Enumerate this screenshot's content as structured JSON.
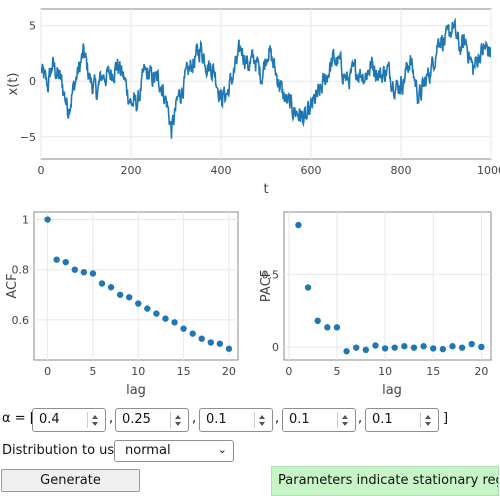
{
  "chart_data": [
    {
      "type": "line",
      "xlabel": "t",
      "ylabel": "x(t)",
      "xlim": [
        0,
        1000
      ],
      "ylim": [
        -7,
        6.5
      ],
      "xticks": [
        "0",
        "200",
        "400",
        "600",
        "800",
        "1000"
      ],
      "yticks": [
        "5",
        "0",
        "−5"
      ],
      "color": "#1f77b4",
      "grid": true,
      "anchors": [
        [
          0,
          1
        ],
        [
          15,
          -0.5
        ],
        [
          25,
          1.5
        ],
        [
          45,
          0
        ],
        [
          60,
          -2.5
        ],
        [
          80,
          0.5
        ],
        [
          95,
          2.5
        ],
        [
          110,
          0
        ],
        [
          125,
          -1
        ],
        [
          135,
          0.5
        ],
        [
          150,
          0.5
        ],
        [
          170,
          1.5
        ],
        [
          185,
          0.2
        ],
        [
          200,
          -2
        ],
        [
          215,
          -2
        ],
        [
          230,
          0.8
        ],
        [
          250,
          0.2
        ],
        [
          265,
          0
        ],
        [
          280,
          -2
        ],
        [
          290,
          -4.5
        ],
        [
          305,
          -1.5
        ],
        [
          320,
          0
        ],
        [
          335,
          1.5
        ],
        [
          355,
          3
        ],
        [
          370,
          1.5
        ],
        [
          385,
          1
        ],
        [
          400,
          -1.5
        ],
        [
          415,
          -1
        ],
        [
          430,
          1
        ],
        [
          445,
          3
        ],
        [
          460,
          1.5
        ],
        [
          475,
          2
        ],
        [
          490,
          0.5
        ],
        [
          505,
          3
        ],
        [
          520,
          1
        ],
        [
          540,
          -1.5
        ],
        [
          560,
          -2.5
        ],
        [
          575,
          -3
        ],
        [
          590,
          -3.5
        ],
        [
          605,
          -2
        ],
        [
          620,
          -1
        ],
        [
          635,
          0.5
        ],
        [
          650,
          2
        ],
        [
          665,
          1.5
        ],
        [
          680,
          0
        ],
        [
          700,
          1
        ],
        [
          720,
          0.5
        ],
        [
          735,
          1.5
        ],
        [
          755,
          0.5
        ],
        [
          770,
          1
        ],
        [
          790,
          -0.5
        ],
        [
          805,
          0
        ],
        [
          820,
          2
        ],
        [
          840,
          -1.5
        ],
        [
          855,
          0
        ],
        [
          870,
          1.5
        ],
        [
          885,
          4
        ],
        [
          900,
          3.5
        ],
        [
          915,
          5
        ],
        [
          930,
          3
        ],
        [
          945,
          3.5
        ],
        [
          960,
          1
        ],
        [
          975,
          2.5
        ],
        [
          990,
          3
        ],
        [
          1000,
          2.5
        ]
      ]
    },
    {
      "type": "scatter",
      "xlabel": "lag",
      "ylabel": "ACF",
      "xlim": [
        -1.5,
        21
      ],
      "ylim": [
        0.44,
        1.03
      ],
      "xticks": [
        "0",
        "5",
        "10",
        "15",
        "20"
      ],
      "yticks": [
        "1",
        "0.8",
        "0.6"
      ],
      "color": "#1f77b4",
      "grid": true,
      "x": [
        0,
        1,
        2,
        3,
        4,
        5,
        6,
        7,
        8,
        9,
        10,
        11,
        12,
        13,
        14,
        15,
        16,
        17,
        18,
        19,
        20
      ],
      "y": [
        1.0,
        0.84,
        0.83,
        0.8,
        0.79,
        0.785,
        0.745,
        0.73,
        0.7,
        0.69,
        0.665,
        0.645,
        0.625,
        0.605,
        0.59,
        0.565,
        0.545,
        0.525,
        0.51,
        0.505,
        0.485
      ]
    },
    {
      "type": "scatter",
      "xlabel": "lag",
      "ylabel": "PACF",
      "xlim": [
        -0.5,
        21
      ],
      "ylim": [
        -0.09,
        0.93
      ],
      "xticks": [
        "0",
        "5",
        "10",
        "15",
        "20"
      ],
      "yticks": [
        "0.5",
        "0"
      ],
      "color": "#1f77b4",
      "grid": true,
      "x": [
        1,
        2,
        3,
        4,
        5,
        6,
        7,
        8,
        9,
        10,
        11,
        12,
        13,
        14,
        15,
        16,
        17,
        18,
        19,
        20
      ],
      "y": [
        0.84,
        0.41,
        0.18,
        0.135,
        0.135,
        -0.03,
        -0.005,
        -0.02,
        0.01,
        -0.01,
        -0.005,
        0.005,
        -0.005,
        0.005,
        -0.01,
        -0.015,
        0.005,
        -0.005,
        0.02,
        0.0
      ]
    }
  ],
  "controls": {
    "alpha_prefix": "α = [",
    "alpha_values": [
      "0.4",
      "0.25",
      "0.1",
      "0.1",
      "0.1"
    ],
    "separator": ",",
    "alpha_suffix": "]",
    "distribution_label": "Distribution to use:",
    "distribution_value": "normal",
    "generate_label": "Generate",
    "status_text": "Parameters indicate stationary regime.",
    "status_color": "#c8f5c8"
  }
}
